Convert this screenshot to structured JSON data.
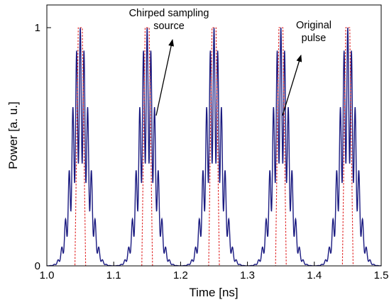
{
  "chart_data": {
    "type": "line",
    "title": "",
    "xlabel": "Time [ns]",
    "ylabel": "Power [a. u.]",
    "xlim": [
      1.0,
      1.5
    ],
    "ylim": [
      0,
      1
    ],
    "x_ticks": [
      "1.0",
      "1.1",
      "1.2",
      "1.3",
      "1.4",
      "1.5"
    ],
    "y_ticks": [
      "0",
      "1"
    ],
    "grid": false,
    "legend": "none",
    "pulse_centers": [
      1.05,
      1.15,
      1.25,
      1.35,
      1.45
    ],
    "series": [
      {
        "style": "solid",
        "color": "#1a1a80",
        "peak_value": 1,
        "pulse_fwhm_ns": 0.029,
        "ripple_period_ns": 0.0056
      },
      {
        "style": "dotted",
        "color": "#e02020",
        "peak_value": 1,
        "pulse_base_width_ns": 0.016,
        "pulse_top_width_ns": 0.006
      }
    ],
    "annotations": [
      {
        "lines": [
          "Chirped sampling",
          "source"
        ],
        "points_to_x": 1.155,
        "points_to_y": 0.62
      },
      {
        "lines": [
          "Original",
          "pulse"
        ],
        "points_to_x": 1.355,
        "points_to_y": 0.62
      }
    ]
  }
}
